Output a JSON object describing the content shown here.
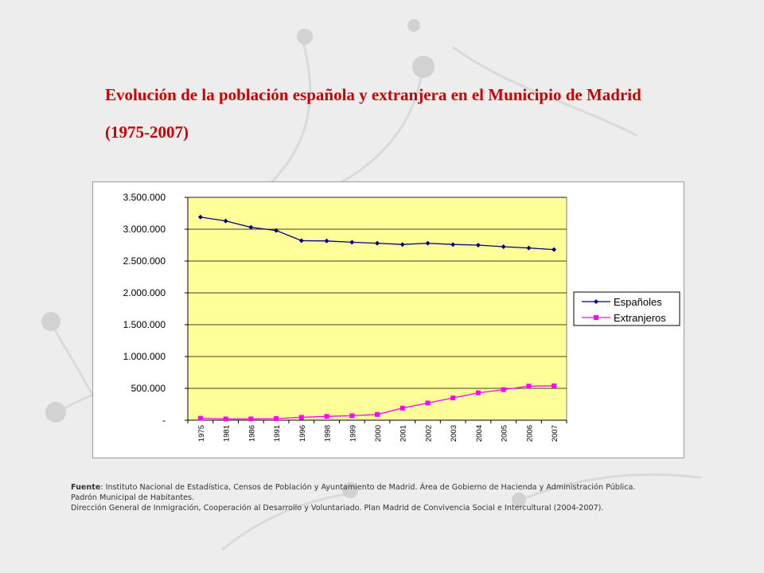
{
  "title_line1": "Evolución  de la población española y extranjera en el Municipio de Madrid",
  "title_line2": "(1975-2007)",
  "source": {
    "label": "Fuente",
    "line1": ": Instituto Nacional de Estadística,  Censos de Población y Ayuntamiento de  Madrid. Área de Gobierno de Hacienda y Administración Pública.",
    "line2": "Padrón Municipal de Habitantes.",
    "line3": "Dirección General de Inmigración, Cooperación al Desarrollo y Voluntariado. Plan Madrid de Convivencia Social e Intercultural (2004-2007)."
  },
  "colors": {
    "title": "#cc0000",
    "plot_bg": "#ffff99",
    "espanoles": "#000080",
    "extranjeros": "#ff00ff"
  },
  "chart_data": {
    "type": "line",
    "categories": [
      "1975",
      "1981",
      "1986",
      "1991",
      "1996",
      "1998",
      "1999",
      "2000",
      "2001",
      "2002",
      "2003",
      "2004",
      "2005",
      "2006",
      "2007"
    ],
    "series": [
      {
        "name": "Españoles",
        "values": [
          3190000,
          3130000,
          3030000,
          2980000,
          2820000,
          2815000,
          2795000,
          2780000,
          2760000,
          2780000,
          2760000,
          2750000,
          2725000,
          2705000,
          2680000
        ]
      },
      {
        "name": "Extranjeros",
        "values": [
          30000,
          20000,
          20000,
          25000,
          45000,
          60000,
          70000,
          90000,
          190000,
          270000,
          350000,
          430000,
          480000,
          535000,
          540000
        ]
      }
    ],
    "ylim": [
      0,
      3500000
    ],
    "yticks": [
      0,
      500000,
      1000000,
      1500000,
      2000000,
      2500000,
      3000000,
      3500000
    ],
    "ytick_labels": [
      "-",
      "500.000",
      "1.000.000",
      "1.500.000",
      "2.000.000",
      "2.500.000",
      "3.000.000",
      "3.500.000"
    ],
    "grid": true,
    "legend": "right"
  }
}
